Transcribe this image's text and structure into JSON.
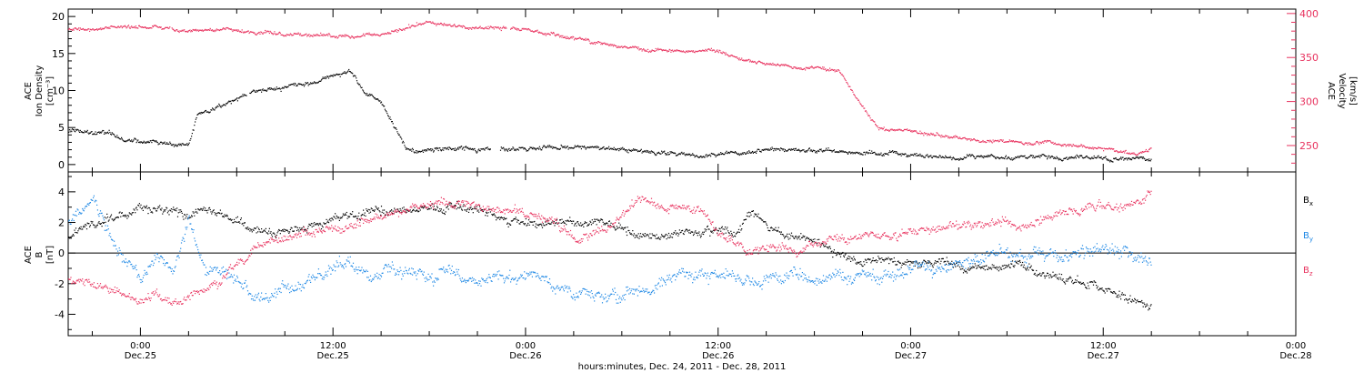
{
  "chart_data": [
    {
      "panel": "top",
      "type": "scatter",
      "ylabel_left": [
        "ACE",
        "Ion Density",
        "[cm⁻³]"
      ],
      "ylabel_right": [
        "ACE",
        "Velocity",
        "[km/s]"
      ],
      "ylim_left": [
        -1,
        21
      ],
      "ylim_right": [
        220,
        405
      ],
      "yticks_left": [
        0,
        5,
        10,
        15,
        20
      ],
      "yticks_right": [
        250,
        300,
        350,
        400
      ],
      "series": [
        {
          "axis": "left",
          "color": "#000000",
          "knots": [
            [
              -4.5,
              4.5
            ],
            [
              -2,
              4
            ],
            [
              -1,
              3.3
            ],
            [
              1,
              2.9
            ],
            [
              3,
              2.8
            ],
            [
              3.5,
              6.5
            ],
            [
              5,
              8
            ],
            [
              7,
              10
            ],
            [
              9,
              10.3
            ],
            [
              11,
              11.3
            ],
            [
              12,
              11.8
            ],
            [
              13,
              12.5
            ],
            [
              14,
              9.5
            ],
            [
              15,
              8
            ],
            [
              16.5,
              2.2
            ],
            [
              17.5,
              1.8
            ],
            [
              20,
              2.2
            ],
            [
              24,
              2.3
            ],
            [
              28,
              2.3
            ],
            [
              32,
              1.6
            ],
            [
              36,
              1.3
            ],
            [
              40,
              2
            ],
            [
              44,
              1.6
            ],
            [
              48,
              1.3
            ],
            [
              52,
              1
            ],
            [
              56,
              1
            ],
            [
              60,
              0.8
            ],
            [
              63,
              0.6
            ]
          ],
          "noise": 0.35,
          "gaps": [
            [
              6.6,
              6.75
            ],
            [
              21.8,
              22.4
            ]
          ]
        },
        {
          "axis": "right",
          "color": "#e8335f",
          "knots": [
            [
              -4.5,
              382
            ],
            [
              -2,
              384
            ],
            [
              0,
              386
            ],
            [
              2,
              381
            ],
            [
              5,
              382
            ],
            [
              8,
              377
            ],
            [
              12,
              372
            ],
            [
              15,
              376
            ],
            [
              18,
              390
            ],
            [
              21,
              383
            ],
            [
              24,
              383
            ],
            [
              26,
              375
            ],
            [
              30,
              362
            ],
            [
              33,
              357
            ],
            [
              36,
              357
            ],
            [
              38,
              345
            ],
            [
              40,
              340
            ],
            [
              42,
              338
            ],
            [
              43.5,
              335
            ],
            [
              44.5,
              305
            ],
            [
              46,
              270
            ],
            [
              50,
              262
            ],
            [
              52,
              258
            ],
            [
              54,
              255
            ],
            [
              56,
              253
            ],
            [
              58,
              251
            ],
            [
              60,
              245
            ],
            [
              62,
              240
            ],
            [
              63,
              247
            ]
          ],
          "noise": 2.4,
          "gaps": [
            [
              1.8,
              1.9
            ],
            [
              22.8,
              23
            ]
          ]
        }
      ]
    },
    {
      "panel": "bottom",
      "type": "scatter",
      "ylabel": [
        "ACE",
        "B",
        "[nT]"
      ],
      "ylim": [
        -5.4,
        5.3
      ],
      "yticks": [
        -4,
        -2,
        0,
        2,
        4
      ],
      "series": [
        {
          "name": "Bx",
          "color": "#000000",
          "knots": [
            [
              -4.5,
              1
            ],
            [
              -3,
              2
            ],
            [
              -1,
              2.5
            ],
            [
              0,
              3
            ],
            [
              1,
              3
            ],
            [
              3,
              2.5
            ],
            [
              5,
              2.5
            ],
            [
              7,
              1.5
            ],
            [
              9,
              1.5
            ],
            [
              11,
              1.8
            ],
            [
              13,
              2.5
            ],
            [
              15,
              2.8
            ],
            [
              17,
              3
            ],
            [
              19,
              3
            ],
            [
              21,
              2.8
            ],
            [
              23,
              2.2
            ],
            [
              25,
              2
            ],
            [
              27,
              2
            ],
            [
              29,
              1.8
            ],
            [
              31,
              1.2
            ],
            [
              33,
              1.2
            ],
            [
              35,
              1.5
            ],
            [
              37,
              1.2
            ],
            [
              38,
              2.5
            ],
            [
              40,
              1.5
            ],
            [
              42,
              0.8
            ],
            [
              44,
              -0.3
            ],
            [
              46,
              -0.5
            ],
            [
              48,
              -0.8
            ],
            [
              50,
              -0.5
            ],
            [
              52,
              -1
            ],
            [
              54,
              -0.8
            ],
            [
              56,
              -1.2
            ],
            [
              58,
              -1.8
            ],
            [
              60,
              -2.3
            ],
            [
              63,
              -3.6
            ]
          ],
          "noise": 0.35
        },
        {
          "name": "By",
          "color": "#1e88e5",
          "knots": [
            [
              -4.5,
              2
            ],
            [
              -3,
              3.5
            ],
            [
              -1.5,
              0.5
            ],
            [
              0,
              -2
            ],
            [
              1,
              0
            ],
            [
              2,
              -1.5
            ],
            [
              3,
              2
            ],
            [
              4,
              -1
            ],
            [
              5,
              -1
            ],
            [
              6,
              -2
            ],
            [
              7,
              -3
            ],
            [
              8,
              -3.2
            ],
            [
              9,
              -2.5
            ],
            [
              11,
              -1.5
            ],
            [
              13,
              -1
            ],
            [
              15,
              -1.5
            ],
            [
              17,
              -1
            ],
            [
              19,
              -1.5
            ],
            [
              21,
              -2
            ],
            [
              23,
              -1.8
            ],
            [
              25,
              -1.5
            ],
            [
              27,
              -2.5
            ],
            [
              29,
              -2.8
            ],
            [
              31,
              -2.5
            ],
            [
              33,
              -2
            ],
            [
              35,
              -1.5
            ],
            [
              37,
              -1.7
            ],
            [
              39,
              -1.8
            ],
            [
              41,
              -1.5
            ],
            [
              43,
              -1.5
            ],
            [
              45,
              -1.5
            ],
            [
              47,
              -1.5
            ],
            [
              49,
              -1
            ],
            [
              51,
              -0.8
            ],
            [
              53,
              -0.2
            ],
            [
              55,
              -0.1
            ],
            [
              57,
              0
            ],
            [
              59,
              0
            ],
            [
              61,
              0
            ],
            [
              63,
              -0.6
            ]
          ],
          "noise": 0.5
        },
        {
          "name": "Bz",
          "color": "#e8335f",
          "knots": [
            [
              -4.5,
              -1.5
            ],
            [
              -3,
              -2
            ],
            [
              -1.5,
              -2.5
            ],
            [
              0,
              -3
            ],
            [
              1,
              -2.5
            ],
            [
              2,
              -3.5
            ],
            [
              3,
              -3
            ],
            [
              4,
              -2.5
            ],
            [
              5,
              -2
            ],
            [
              7,
              0
            ],
            [
              9,
              1
            ],
            [
              11,
              1.5
            ],
            [
              13,
              2
            ],
            [
              15,
              2.5
            ],
            [
              17,
              3
            ],
            [
              19,
              3.2
            ],
            [
              21,
              3
            ],
            [
              23,
              2.8
            ],
            [
              25,
              2.2
            ],
            [
              27,
              1
            ],
            [
              29,
              1.5
            ],
            [
              31,
              3.5
            ],
            [
              33,
              3
            ],
            [
              35,
              2.8
            ],
            [
              36,
              1.2
            ],
            [
              37,
              0.5
            ],
            [
              38,
              0
            ],
            [
              39,
              0.5
            ],
            [
              41,
              0.2
            ],
            [
              43,
              0.8
            ],
            [
              45,
              1.2
            ],
            [
              47,
              1.1
            ],
            [
              49,
              1.3
            ],
            [
              51,
              1.5
            ],
            [
              53,
              2
            ],
            [
              55,
              2
            ],
            [
              57,
              2.5
            ],
            [
              59,
              3
            ],
            [
              61,
              3
            ],
            [
              63,
              4
            ]
          ],
          "noise": 0.35
        }
      ]
    }
  ],
  "xaxis": {
    "range_hours": [
      -4.5,
      72
    ],
    "ticks": [
      {
        "h": 0,
        "time": "0:00",
        "date": "Dec.25"
      },
      {
        "h": 12,
        "time": "12:00",
        "date": "Dec.25"
      },
      {
        "h": 24,
        "time": "0:00",
        "date": "Dec.26"
      },
      {
        "h": 36,
        "time": "12:00",
        "date": "Dec.26"
      },
      {
        "h": 48,
        "time": "0:00",
        "date": "Dec.27"
      },
      {
        "h": 60,
        "time": "12:00",
        "date": "Dec.27"
      },
      {
        "h": 72,
        "time": "0:00",
        "date": "Dec.28"
      }
    ],
    "label": "hours:minutes, Dec. 24, 2011 - Dec. 28, 2011"
  },
  "legend": {
    "bx": {
      "main": "B",
      "sub": "x"
    },
    "by": {
      "main": "B",
      "sub": "y"
    },
    "bz": {
      "main": "B",
      "sub": "z"
    }
  }
}
